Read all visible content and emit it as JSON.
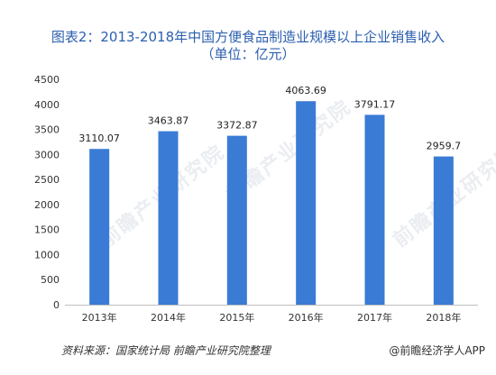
{
  "header": {
    "title": "图表2：2013-2018年中国方便食品制造业规模以上企业销售收入",
    "subtitle": "（单位：亿元）"
  },
  "footer": {
    "source": "资料来源：国家统计局 前瞻产业研究院整理",
    "brand": "@前瞻经济学人APP"
  },
  "colors": {
    "bar": "#3a7bd5",
    "title": "#2b5fae"
  },
  "chart_data": {
    "type": "bar",
    "title": "图表2：2013-2018年中国方便食品制造业规模以上企业销售收入",
    "subtitle": "（单位：亿元）",
    "categories": [
      "2013年",
      "2014年",
      "2015年",
      "2016年",
      "2017年",
      "2018年"
    ],
    "values": [
      3110.07,
      3463.87,
      3372.87,
      4063.69,
      3791.17,
      2959.7
    ],
    "labels": [
      "3110.07",
      "3463.87",
      "3372.87",
      "4063.69",
      "3791.17",
      "2959.7"
    ],
    "ylim": [
      0,
      4500
    ],
    "yticks": [
      0,
      500,
      1000,
      1500,
      2000,
      2500,
      3000,
      3500,
      4000,
      4500
    ],
    "xlabel": "",
    "ylabel": "",
    "grid": false
  }
}
